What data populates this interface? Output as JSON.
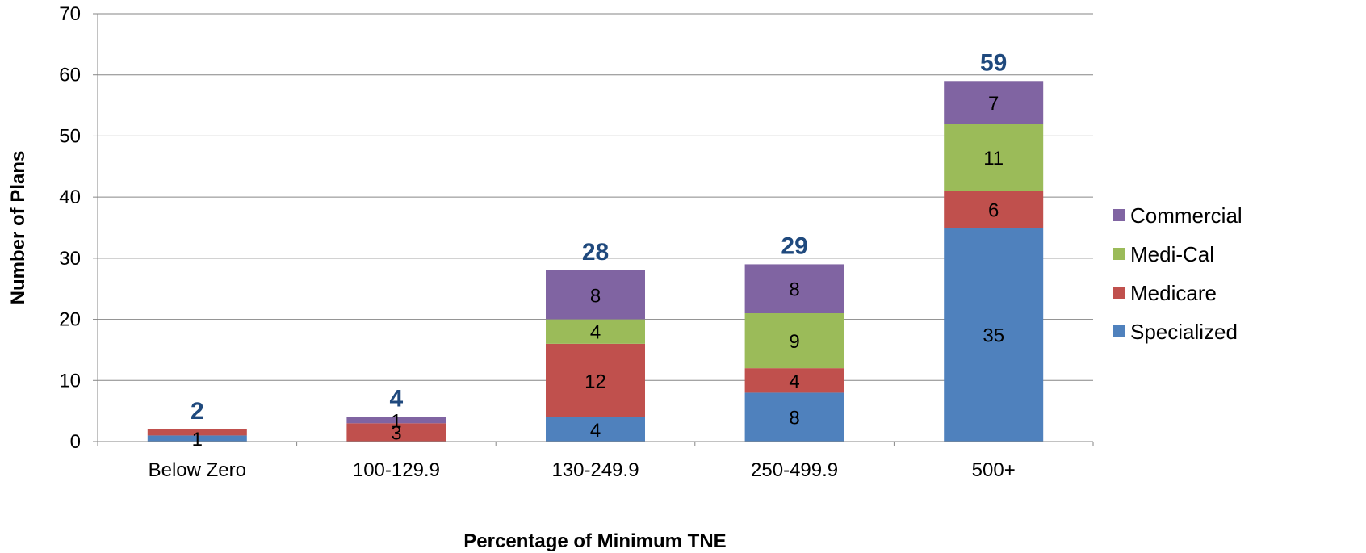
{
  "chart_data": {
    "type": "bar",
    "stacked": true,
    "categories": [
      "Below Zero",
      "100-129.9",
      "130-249.9",
      "250-499.9",
      "500+"
    ],
    "series": [
      {
        "name": "Specialized",
        "values": [
          1,
          0,
          4,
          8,
          35
        ],
        "labels": [
          "1",
          "",
          "4",
          "8",
          "35"
        ],
        "color": "#4F81BD"
      },
      {
        "name": "Medicare",
        "values": [
          1,
          3,
          12,
          4,
          6
        ],
        "labels": [
          "",
          "3",
          "12",
          "4",
          "6"
        ],
        "color": "#C0504D"
      },
      {
        "name": "Medi-Cal",
        "values": [
          0,
          0,
          4,
          9,
          11
        ],
        "labels": [
          "",
          "",
          "4",
          "9",
          "11"
        ],
        "color": "#9BBB59"
      },
      {
        "name": "Commercial",
        "values": [
          0,
          1,
          8,
          8,
          7
        ],
        "labels": [
          "",
          "1",
          "8",
          "8",
          "7"
        ],
        "color": "#8064A2"
      }
    ],
    "totals": [
      2,
      4,
      28,
      29,
      59
    ],
    "totals_color": "#1F497D",
    "xlabel": "Percentage of Minimum TNE",
    "ylabel": "Number of Plans",
    "ylim": [
      0,
      70
    ],
    "yticks": [
      0,
      10,
      20,
      30,
      40,
      50,
      60,
      70
    ],
    "grid": true,
    "legend_position": "right",
    "legend_order": [
      "Commercial",
      "Medi-Cal",
      "Medicare",
      "Specialized"
    ]
  }
}
